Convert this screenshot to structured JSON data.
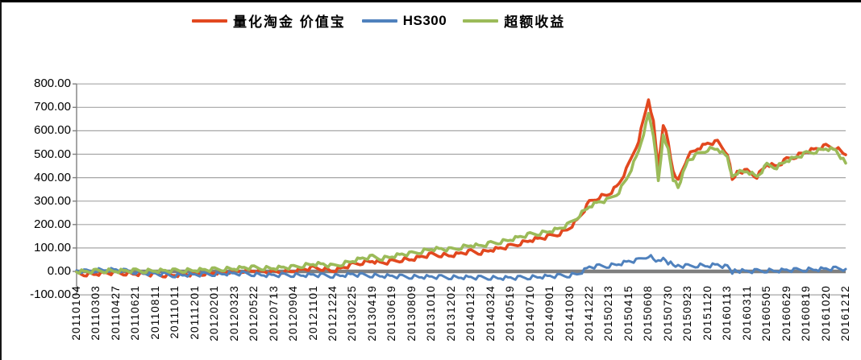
{
  "legend": {
    "items": [
      {
        "label": "量化淘金 价值宝",
        "color": "#e2481f"
      },
      {
        "label": "HS300",
        "color": "#4f81bd"
      },
      {
        "label": "超额收益",
        "color": "#9bbb59"
      }
    ]
  },
  "colors": {
    "gridline": "#a6a6a6",
    "zero_line": "#7f7f7f",
    "axis": "#7f7f7f",
    "label_text": "#000000",
    "frame_border": "#000000",
    "background": "#ffffff"
  },
  "chart_data": {
    "type": "line",
    "title": "",
    "xlabel": "",
    "ylabel": "",
    "legend_position": "top",
    "grid": "horizontal",
    "ylim": [
      -100,
      800
    ],
    "y_tick_values": [
      800,
      700,
      600,
      500,
      400,
      300,
      200,
      100,
      0,
      -100
    ],
    "y_tick_labels": [
      "800.00",
      "700.00",
      "600.00",
      "500.00",
      "400.00",
      "300.00",
      "200.00",
      "100.00",
      "0.00",
      "-100.00"
    ],
    "x_tick_labels": [
      "20110104",
      "20110303",
      "20110427",
      "20110621",
      "20110811",
      "20111011",
      "20111201",
      "20120201",
      "20120323",
      "20120522",
      "20120713",
      "20120904",
      "20121101",
      "20121224",
      "20130225",
      "20130419",
      "20130619",
      "20130809",
      "20131010",
      "20131202",
      "20140123",
      "20140324",
      "20140519",
      "20140710",
      "20140901",
      "20141030",
      "20141222",
      "20150213",
      "20150415",
      "20150608",
      "20150730",
      "20150923",
      "20151120",
      "20160113",
      "20160311",
      "20160505",
      "20160629",
      "20160819",
      "20161020",
      "20161212"
    ],
    "x_unit": "tick index (0 = 20110104 ... 39 = 20161212)",
    "sample_t": [
      0,
      0.5,
      1,
      1.5,
      2,
      2.5,
      3,
      3.5,
      4,
      4.5,
      5,
      5.5,
      6,
      6.5,
      7,
      7.5,
      8,
      8.5,
      9,
      9.5,
      10,
      10.5,
      11,
      11.5,
      12,
      12.5,
      13,
      13.5,
      14,
      14.5,
      15,
      15.5,
      16,
      16.5,
      17,
      17.5,
      18,
      18.5,
      19,
      19.5,
      20,
      20.5,
      21,
      21.5,
      22,
      22.5,
      23,
      23.5,
      24,
      24.5,
      25,
      25.5,
      26,
      26.5,
      27,
      27.5,
      28,
      28.5,
      29,
      29.25,
      29.5,
      29.75,
      30,
      30.25,
      30.5,
      31,
      31.5,
      32,
      32.5,
      33,
      33.25,
      33.5,
      34,
      34.5,
      35,
      35.5,
      36,
      36.5,
      37,
      37.5,
      38,
      38.5,
      39
    ],
    "series": [
      {
        "name": "量化淘金价值宝",
        "color": "#e2481f",
        "values": [
          -8,
          -12,
          -10,
          -8,
          -6,
          -8,
          -10,
          -12,
          -13,
          -16,
          -15,
          -13,
          -12,
          -8,
          -5,
          -2,
          0,
          4,
          3,
          -2,
          -4,
          0,
          2,
          8,
          15,
          12,
          2,
          15,
          30,
          38,
          45,
          35,
          42,
          50,
          52,
          62,
          72,
          70,
          68,
          77,
          85,
          80,
          92,
          98,
          108,
          120,
          133,
          140,
          150,
          162,
          185,
          230,
          295,
          318,
          330,
          372,
          455,
          560,
          735,
          640,
          435,
          630,
          555,
          425,
          385,
          495,
          525,
          545,
          552,
          505,
          395,
          425,
          428,
          405,
          458,
          448,
          478,
          492,
          512,
          522,
          535,
          528,
          498
        ]
      },
      {
        "name": "HS300",
        "color": "#4f81bd",
        "values": [
          2,
          0,
          5,
          7,
          6,
          2,
          -3,
          -8,
          -10,
          -14,
          -17,
          -14,
          -15,
          -12,
          -11,
          -9,
          -10,
          -9,
          -12,
          -15,
          -17,
          -15,
          -15,
          -16,
          -15,
          -17,
          -19,
          -16,
          -13,
          -16,
          -17,
          -19,
          -21,
          -22,
          -23,
          -23,
          -24,
          -24,
          -25,
          -25,
          -26,
          -27,
          -27,
          -28,
          -28,
          -27,
          -25,
          -23,
          -21,
          -19,
          -17,
          -8,
          18,
          22,
          24,
          32,
          42,
          48,
          68,
          55,
          45,
          50,
          38,
          30,
          25,
          22,
          26,
          24,
          28,
          18,
          -2,
          3,
          0,
          2,
          4,
          3,
          5,
          6,
          8,
          9,
          10,
          12,
          10
        ]
      },
      {
        "name": "超额收益",
        "color": "#9bbb59",
        "values": [
          0,
          -2,
          2,
          3,
          2,
          2,
          3,
          2,
          3,
          2,
          3,
          4,
          5,
          6,
          8,
          10,
          12,
          15,
          16,
          14,
          14,
          16,
          18,
          25,
          32,
          30,
          22,
          33,
          45,
          55,
          62,
          55,
          64,
          72,
          76,
          86,
          96,
          95,
          93,
          103,
          112,
          108,
          120,
          126,
          136,
          147,
          158,
          163,
          172,
          182,
          203,
          240,
          278,
          296,
          306,
          340,
          413,
          512,
          667,
          585,
          390,
          580,
          517,
          395,
          360,
          473,
          499,
          521,
          524,
          487,
          397,
          422,
          428,
          403,
          454,
          445,
          473,
          486,
          504,
          513,
          525,
          516,
          462
        ]
      }
    ]
  }
}
